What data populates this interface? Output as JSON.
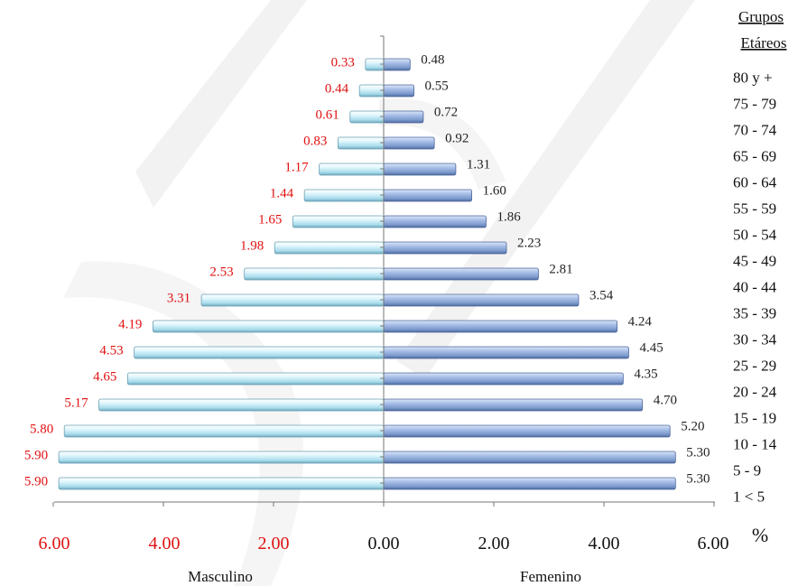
{
  "chart_data": {
    "type": "bar",
    "orientation": "horizontal",
    "style": "population-pyramid",
    "legend_title": [
      "Grupos",
      "Etáreos"
    ],
    "categories": [
      "80 y +",
      "75 - 79",
      "70 - 74",
      "65 - 69",
      "60 - 64",
      "55 - 59",
      "50 - 54",
      "45 - 49",
      "40 - 44",
      "35 - 39",
      "30 - 34",
      "25 - 29",
      "20 - 24",
      "15 - 19",
      "10 - 14",
      "5 - 9",
      "1 < 5"
    ],
    "series": [
      {
        "name": "Masculino",
        "color": "#c8eef8",
        "label_color": "#e01010",
        "values": [
          0.33,
          0.44,
          0.61,
          0.83,
          1.17,
          1.44,
          1.65,
          1.98,
          2.53,
          3.31,
          4.19,
          4.53,
          4.65,
          5.17,
          5.8,
          5.9,
          5.9
        ],
        "labels": [
          "0.33",
          "0.44",
          "0.61",
          "0.83",
          "1.17",
          "1.44",
          "1.65",
          "1.98",
          "2.53",
          "3.31",
          "4.19",
          "4.53",
          "4.65",
          "5.17",
          "5.80",
          "5.90",
          "5.90"
        ]
      },
      {
        "name": "Femenino",
        "color": "#8aa6d8",
        "label_color": "#222222",
        "values": [
          0.48,
          0.55,
          0.72,
          0.92,
          1.31,
          1.6,
          1.86,
          2.23,
          2.81,
          3.54,
          4.24,
          4.45,
          4.35,
          4.7,
          5.2,
          5.3,
          5.3
        ],
        "labels": [
          "0.48",
          "0.55",
          "0.72",
          "0.92",
          "1.31",
          "1.60",
          "1.86",
          "2.23",
          "2.81",
          "3.54",
          "4.24",
          "4.45",
          "4.35",
          "4.70",
          "5.20",
          "5.30",
          "5.30"
        ]
      }
    ],
    "x_ticks_left": [
      "6.00",
      "4.00",
      "2.00"
    ],
    "x_ticks_center": "0.00",
    "x_ticks_right": [
      "2.00",
      "4.00",
      "6.00"
    ],
    "xlim": [
      -6,
      6
    ],
    "unit_label": "%",
    "grid": false
  }
}
